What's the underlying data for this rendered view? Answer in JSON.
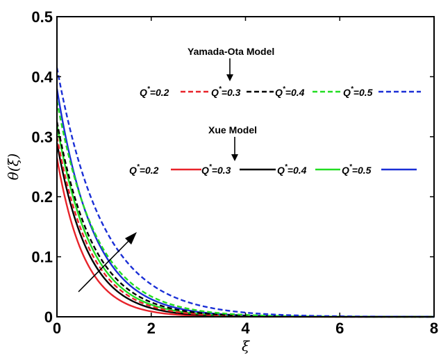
{
  "chart_data": {
    "type": "line",
    "xlabel": "ξ",
    "ylabel": "θ(ξ)",
    "xlim": [
      0,
      8
    ],
    "ylim": [
      0,
      0.5
    ],
    "xticks": [
      "0",
      "2",
      "4",
      "6",
      "8"
    ],
    "yticks": [
      "0",
      "0.1",
      "0.2",
      "0.3",
      "0.4",
      "0.5"
    ],
    "grid": false,
    "colors": {
      "q02": "#e8232a",
      "q03": "#000000",
      "q04": "#22dd22",
      "q05": "#1a2fd6"
    },
    "annotations": {
      "yamada": "Yamada-Ota Model",
      "xue": "Xue Model",
      "q_prefix": "Q",
      "q_star": "*",
      "q_values": [
        "=0.2",
        "=0.3",
        "=0.4",
        "=0.5"
      ]
    },
    "series": [
      {
        "model": "Xue",
        "q": "0.2",
        "style": "solid",
        "color": "#e8232a",
        "y0": 0.265,
        "k": 1.7
      },
      {
        "model": "Xue",
        "q": "0.3",
        "style": "solid",
        "color": "#000000",
        "y0": 0.29,
        "k": 1.5
      },
      {
        "model": "Xue",
        "q": "0.4",
        "style": "solid",
        "color": "#22dd22",
        "y0": 0.32,
        "k": 1.38
      },
      {
        "model": "Xue",
        "q": "0.5",
        "style": "solid",
        "color": "#1a2fd6",
        "y0": 0.38,
        "k": 1.28
      },
      {
        "model": "Yamada-Ota",
        "q": "0.2",
        "style": "dashed",
        "color": "#e8232a",
        "y0": 0.3,
        "k": 1.42
      },
      {
        "model": "Yamada-Ota",
        "q": "0.3",
        "style": "dashed",
        "color": "#000000",
        "y0": 0.325,
        "k": 1.3
      },
      {
        "model": "Yamada-Ota",
        "q": "0.4",
        "style": "dashed",
        "color": "#22dd22",
        "y0": 0.36,
        "k": 1.18
      },
      {
        "model": "Yamada-Ota",
        "q": "0.5",
        "style": "dashed",
        "color": "#1a2fd6",
        "y0": 0.415,
        "k": 1.02
      }
    ]
  }
}
